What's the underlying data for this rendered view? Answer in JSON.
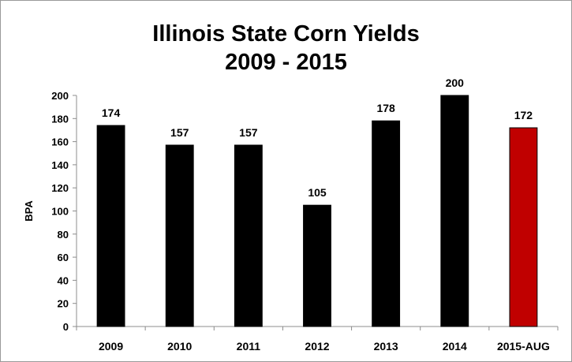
{
  "chart_data": {
    "type": "bar",
    "title": [
      "Illinois State Corn Yields",
      "2009 - 2015"
    ],
    "xlabel": "",
    "ylabel": "BPA",
    "categories": [
      "2009",
      "2010",
      "2011",
      "2012",
      "2013",
      "2014",
      "2015-AUG"
    ],
    "values": [
      174,
      157,
      157,
      105,
      178,
      200,
      172
    ],
    "data_labels": [
      "174",
      "157",
      "157",
      "105",
      "178",
      "200",
      "172"
    ],
    "ylim": [
      0,
      200
    ],
    "yticks": [
      0,
      20,
      40,
      60,
      80,
      100,
      120,
      140,
      160,
      180,
      200
    ],
    "grid": false,
    "legend": "none",
    "colors": {
      "default": "#000000",
      "highlight": "#c00000",
      "highlight_index": 6
    }
  }
}
